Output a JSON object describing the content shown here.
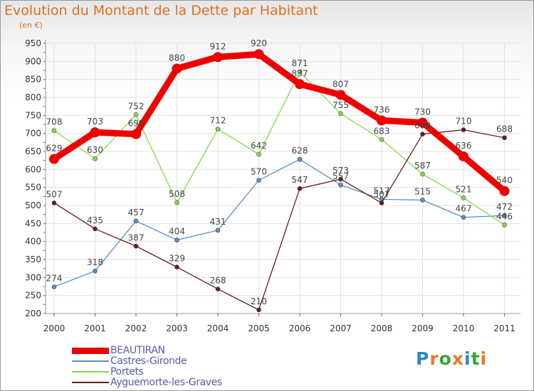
{
  "title": "Evolution du Montant de la Dette par Habitant",
  "subtitle": "(en €)",
  "brand": {
    "text": "Proxiti",
    "letters": [
      "P",
      "r",
      "o",
      "x",
      "i",
      "t",
      "i"
    ],
    "colors": [
      "#2f86c9",
      "#e8792b",
      "#3aa33a",
      "#e8792b",
      "#2f86c9",
      "#3aa33a",
      "#e8792b"
    ]
  },
  "chart_data": {
    "type": "line",
    "title": "Evolution du Montant de la Dette par Habitant",
    "ylabel": "(en €)",
    "categories": [
      "2000",
      "2001",
      "2002",
      "2003",
      "2004",
      "2005",
      "2006",
      "2007",
      "2008",
      "2009",
      "2010",
      "2011"
    ],
    "ylim": [
      200,
      950
    ],
    "yticks": [
      200,
      250,
      300,
      350,
      400,
      450,
      500,
      550,
      600,
      650,
      700,
      750,
      800,
      850,
      900,
      950
    ],
    "series": [
      {
        "name": "Castres-Gironde",
        "color": "#5b8ec7",
        "emphasis": false,
        "values": [
          274,
          318,
          457,
          404,
          431,
          570,
          628,
          557,
          517,
          515,
          467,
          472
        ]
      },
      {
        "name": "Portets",
        "color": "#86d94a",
        "emphasis": false,
        "values": [
          708,
          630,
          752,
          508,
          712,
          642,
          871,
          755,
          683,
          587,
          521,
          446
        ]
      },
      {
        "name": "Ayguemorte-les-Graves",
        "color": "#6b1a1a",
        "emphasis": false,
        "values": [
          507,
          435,
          387,
          329,
          268,
          210,
          547,
          573,
          507,
          698,
          710,
          688
        ]
      },
      {
        "name": "BEAUTIRAN",
        "color": "#ee0000",
        "emphasis": true,
        "values": [
          629,
          703,
          698,
          880,
          912,
          920,
          837,
          807,
          736,
          730,
          636,
          540
        ]
      }
    ],
    "legend_order": [
      "BEAUTIRAN",
      "Castres-Gironde",
      "Portets",
      "Ayguemorte-les-Graves"
    ]
  }
}
